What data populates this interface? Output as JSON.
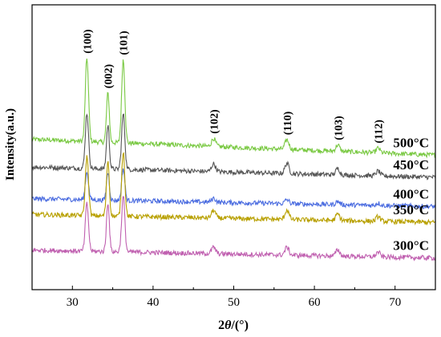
{
  "chart_data": {
    "type": "line",
    "title": "",
    "xlabel_prefix": "2",
    "xlabel_theta": "θ",
    "xlabel_suffix": "/(°)",
    "ylabel": "Intensity(a.u.)",
    "xlim": [
      25,
      75
    ],
    "xticks": [
      30,
      40,
      50,
      60,
      70
    ],
    "grid": false,
    "peak_labels": [
      {
        "label": "(100)",
        "x": 31.8
      },
      {
        "label": "(002)",
        "x": 34.4
      },
      {
        "label": "(101)",
        "x": 36.3
      },
      {
        "label": "(102)",
        "x": 47.5
      },
      {
        "label": "(110)",
        "x": 56.6
      },
      {
        "label": "(103)",
        "x": 62.9
      },
      {
        "label": "(112)",
        "x": 67.9
      }
    ],
    "peaks": [
      {
        "x": 31.8,
        "w": 0.28
      },
      {
        "x": 34.4,
        "w": 0.25
      },
      {
        "x": 36.3,
        "w": 0.28
      },
      {
        "x": 47.5,
        "w": 0.35
      },
      {
        "x": 56.6,
        "w": 0.35
      },
      {
        "x": 62.9,
        "w": 0.35
      },
      {
        "x": 67.9,
        "w": 0.35
      }
    ],
    "series": [
      {
        "name": "500°C",
        "color": "#7ac943",
        "baseline_left": 0.9,
        "baseline_right": 0.7,
        "amplitudes": [
          1.05,
          0.62,
          1.05,
          0.1,
          0.12,
          0.08,
          0.06
        ]
      },
      {
        "name": "450°C",
        "color": "#555555",
        "baseline_left": 0.55,
        "baseline_right": 0.42,
        "amplitudes": [
          0.7,
          0.55,
          0.7,
          0.1,
          0.13,
          0.08,
          0.06
        ]
      },
      {
        "name": "400°C",
        "color": "#4c6de0",
        "baseline_left": 0.15,
        "baseline_right": 0.05,
        "amplitudes": [
          0.35,
          0.35,
          0.4,
          0.05,
          0.05,
          0.04,
          0.03
        ]
      },
      {
        "name": "350°C",
        "color": "#b8a000",
        "baseline_left": -0.05,
        "baseline_right": -0.15,
        "amplitudes": [
          0.75,
          0.7,
          0.82,
          0.1,
          0.12,
          0.08,
          0.06
        ]
      },
      {
        "name": "300°C",
        "color": "#c060b0",
        "baseline_left": -0.5,
        "baseline_right": -0.6,
        "amplitudes": [
          0.6,
          0.62,
          0.7,
          0.08,
          0.1,
          0.08,
          0.06
        ]
      }
    ],
    "ylim": [
      -1.0,
      2.6
    ]
  }
}
